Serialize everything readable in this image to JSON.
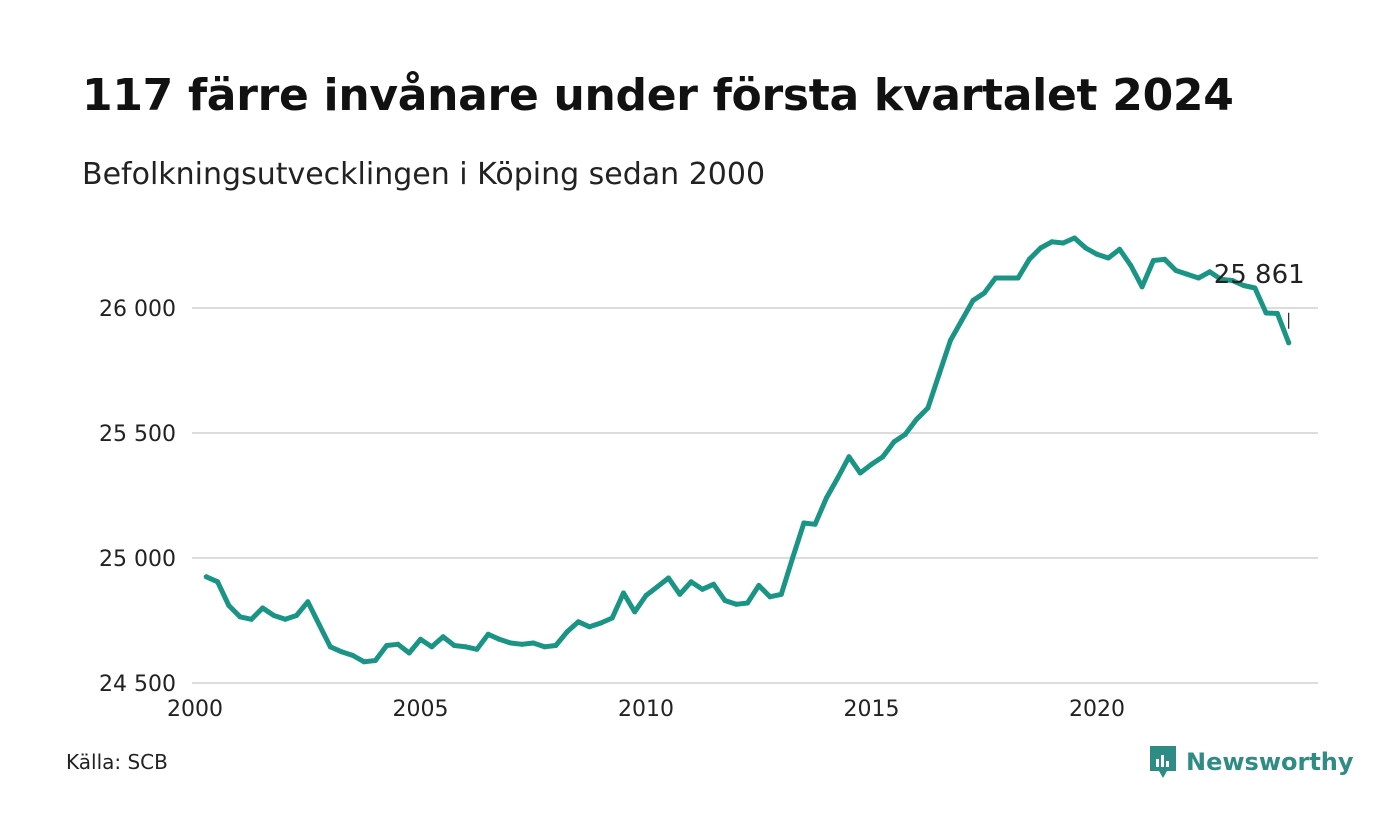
{
  "title": "117 färre invånare under första kvartalet 2024",
  "subtitle": "Befolkningsutvecklingen i Köping sedan 2000",
  "source": "Källa: SCB",
  "brand": {
    "name": "Newsworthy",
    "icon": "newsworthy-logo-icon",
    "color": "#2f8c84"
  },
  "colors": {
    "line": "#1a9585",
    "grid": "#dcdcdc",
    "text": "#222222"
  },
  "chart_data": {
    "type": "line",
    "title": "117 färre invånare under första kvartalet 2024",
    "subtitle": "Befolkningsutvecklingen i Köping sedan 2000",
    "xlabel": "",
    "ylabel": "",
    "xlim": [
      2000,
      2024.75
    ],
    "ylim": [
      24500,
      26300
    ],
    "grid": true,
    "x_ticks": [
      {
        "value": 2000,
        "label": "2000"
      },
      {
        "value": 2005,
        "label": "2005"
      },
      {
        "value": 2010,
        "label": "2010"
      },
      {
        "value": 2015,
        "label": "2015"
      },
      {
        "value": 2020,
        "label": "2020"
      }
    ],
    "y_ticks": [
      {
        "value": 24500,
        "label": "24 500"
      },
      {
        "value": 25000,
        "label": "25 000"
      },
      {
        "value": 25500,
        "label": "25 500"
      },
      {
        "value": 26000,
        "label": "26 000"
      }
    ],
    "last_value_label": "25 861",
    "series": [
      {
        "x": [
          2000.25,
          2000.5,
          2000.75,
          2001.0,
          2001.25,
          2001.5,
          2001.75,
          2002.0,
          2002.25,
          2002.5,
          2002.75,
          2003.0,
          2003.25,
          2003.5,
          2003.75,
          2004.0,
          2004.25,
          2004.5,
          2004.75,
          2005.0,
          2005.25,
          2005.5,
          2005.75,
          2006.0,
          2006.25,
          2006.5,
          2006.75,
          2007.0,
          2007.25,
          2007.5,
          2007.75,
          2008.0,
          2008.25,
          2008.5,
          2008.75,
          2009.0,
          2009.25,
          2009.5,
          2009.75,
          2010.0,
          2010.25,
          2010.5,
          2010.75,
          2011.0,
          2011.25,
          2011.5,
          2011.75,
          2012.0,
          2012.25,
          2012.5,
          2012.75,
          2013.0,
          2013.25,
          2013.5,
          2013.75,
          2014.0,
          2014.25,
          2014.5,
          2014.75,
          2015.0,
          2015.25,
          2015.5,
          2015.75,
          2016.0,
          2016.25,
          2016.5,
          2016.75,
          2017.0,
          2017.25,
          2017.5,
          2017.75,
          2018.0,
          2018.25,
          2018.5,
          2018.75,
          2019.0,
          2019.25,
          2019.5,
          2019.75,
          2020.0,
          2020.25,
          2020.5,
          2020.75,
          2021.0,
          2021.25,
          2021.5,
          2021.75,
          2022.0,
          2022.25,
          2022.5,
          2022.75,
          2023.0,
          2023.25,
          2023.5,
          2023.75,
          2024.0,
          2024.25
        ],
        "values": [
          24925,
          24905,
          24810,
          24765,
          24755,
          24800,
          24770,
          24755,
          24770,
          24825,
          24735,
          24645,
          24625,
          24610,
          24585,
          24590,
          24650,
          24655,
          24620,
          24675,
          24645,
          24685,
          24650,
          24645,
          24635,
          24695,
          24675,
          24660,
          24655,
          24660,
          24645,
          24650,
          24705,
          24745,
          24725,
          24740,
          24760,
          24860,
          24785,
          24850,
          24885,
          24920,
          24855,
          24905,
          24875,
          24895,
          24830,
          24815,
          24820,
          24890,
          24845,
          24855,
          25000,
          25140,
          25135,
          25240,
          25320,
          25405,
          25340,
          25375,
          25405,
          25465,
          25495,
          25555,
          25600,
          25735,
          25870,
          25950,
          26030,
          26060,
          26120,
          26120,
          26120,
          26195,
          26240,
          26265,
          26260,
          26280,
          26240,
          26215,
          26200,
          26235,
          26170,
          26085,
          26190,
          26195,
          26150,
          26135,
          26120,
          26145,
          26115,
          26110,
          26090,
          26080,
          25980,
          25978,
          25861
        ]
      }
    ]
  }
}
